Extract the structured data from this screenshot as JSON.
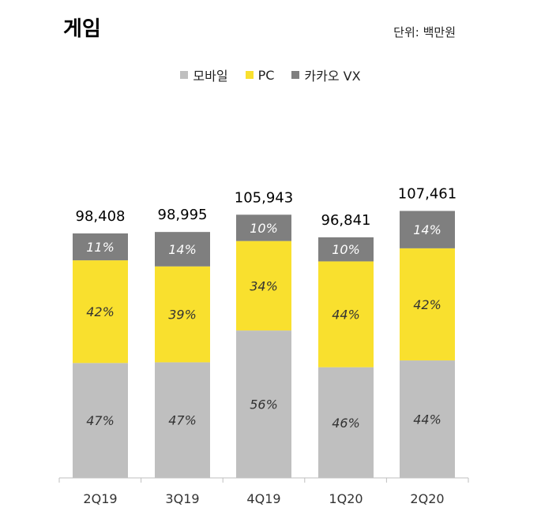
{
  "header": {
    "title": "게임",
    "unit": "단위: 백만원"
  },
  "chart_data": {
    "type": "bar",
    "stacked": "percent",
    "categories": [
      "2Q19",
      "3Q19",
      "4Q19",
      "1Q20",
      "2Q20"
    ],
    "totals": [
      98408,
      98995,
      105943,
      96841,
      107461
    ],
    "total_labels": [
      "98,408",
      "98,995",
      "105,943",
      "96,841",
      "107,461"
    ],
    "series": [
      {
        "name": "모바일",
        "color": "#bfbfbf",
        "values": [
          47,
          47,
          56,
          46,
          44
        ],
        "labels": [
          "47%",
          "47%",
          "56%",
          "46%",
          "44%"
        ]
      },
      {
        "name": "PC",
        "color": "#f9e02e",
        "values": [
          42,
          39,
          34,
          44,
          42
        ],
        "labels": [
          "42%",
          "39%",
          "34%",
          "44%",
          "42%"
        ]
      },
      {
        "name": "카카오 VX",
        "color": "#7f7f7f",
        "values": [
          11,
          14,
          10,
          10,
          14
        ],
        "labels": [
          "11%",
          "14%",
          "10%",
          "10%",
          "14%"
        ]
      }
    ],
    "legend_position": "top-center",
    "grid": false
  }
}
